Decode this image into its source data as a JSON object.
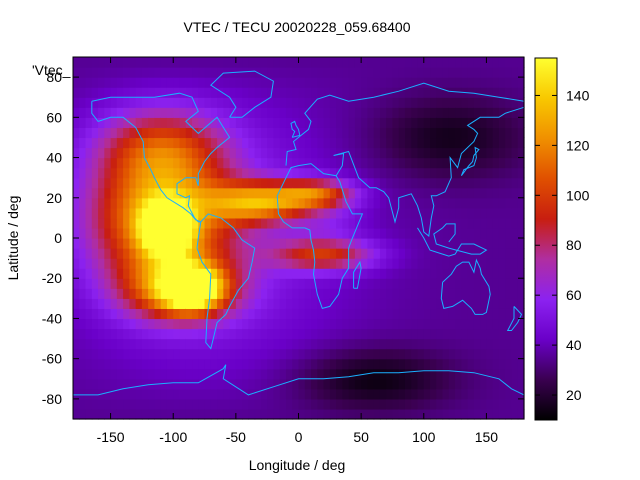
{
  "chart_data": {
    "type": "heatmap",
    "title": "VTEC / TECU 20020228_059.68400",
    "xlabel": "Longitude / deg",
    "ylabel": "Latitude / deg",
    "key_label": "'Vtec_",
    "xlim": [
      -180,
      180
    ],
    "ylim": [
      -90,
      90
    ],
    "x_ticks": [
      -150,
      -100,
      -50,
      0,
      50,
      100,
      150
    ],
    "y_ticks": [
      -80,
      -60,
      -40,
      -20,
      0,
      20,
      40,
      60,
      80
    ],
    "colorbar": {
      "range": [
        10,
        155
      ],
      "ticks": [
        20,
        40,
        60,
        80,
        100,
        120,
        140
      ],
      "palette": [
        "#000000",
        "#3a0050",
        "#6a00c8",
        "#8c22f0",
        "#b02ea0",
        "#c81e10",
        "#e05000",
        "#f09000",
        "#f8c800",
        "#ffff30"
      ]
    },
    "grid": false,
    "legend": "none",
    "grid_resolution_deg": 5,
    "background_vtec": 35,
    "features": [
      {
        "name": "anomaly-crest-north-america",
        "lon": -110,
        "lat": 10,
        "lon_width": 55,
        "lat_width": 30,
        "vtec": 120
      },
      {
        "name": "anomaly-peak-central-pacific",
        "lon": -105,
        "lat": 5,
        "lon_width": 18,
        "lat_width": 12,
        "vtec": 150
      },
      {
        "name": "anomaly-peak-south-pacific",
        "lon": -85,
        "lat": -25,
        "lon_width": 22,
        "lat_width": 10,
        "vtec": 130
      },
      {
        "name": "southern-crest",
        "lon": -95,
        "lat": -25,
        "lon_width": 45,
        "lat_width": 16,
        "vtec": 105
      },
      {
        "name": "northern-crest-atlantic",
        "lon": -30,
        "lat": 18,
        "lon_width": 40,
        "lat_width": 10,
        "vtec": 110
      },
      {
        "name": "north-crest-africa",
        "lon": 15,
        "lat": 22,
        "lon_width": 30,
        "lat_width": 7,
        "vtec": 95
      },
      {
        "name": "south-crest-africa",
        "lon": 20,
        "lat": -8,
        "lon_width": 40,
        "lat_width": 8,
        "vtec": 90
      },
      {
        "name": "equatorial-trough-africa",
        "lon": 25,
        "lat": 8,
        "lon_width": 25,
        "lat_width": 8,
        "vtec": 45
      },
      {
        "name": "western-north-america",
        "lon": -110,
        "lat": 45,
        "lon_width": 50,
        "lat_width": 20,
        "vtec": 85
      },
      {
        "name": "night-trough-asia",
        "lon": 120,
        "lat": 50,
        "lon_width": 60,
        "lat_width": 20,
        "vtec": 15
      },
      {
        "name": "night-trough-south",
        "lon": 60,
        "lat": -70,
        "lon_width": 60,
        "lat_width": 15,
        "vtec": 12
      }
    ]
  }
}
